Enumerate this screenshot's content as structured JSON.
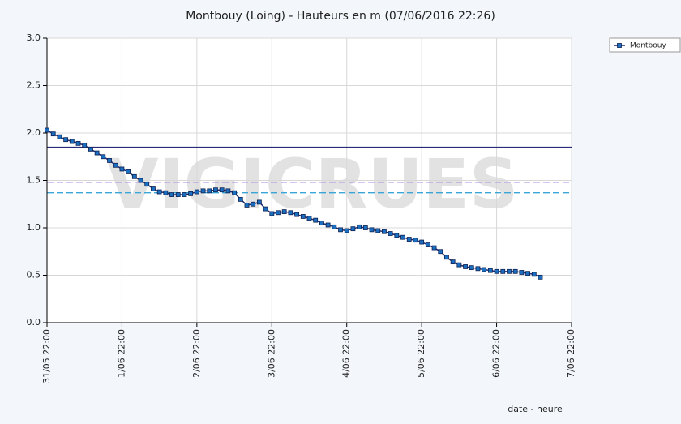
{
  "chart_data": {
    "type": "line",
    "title": "Montbouy (Loing) - Hauteurs en m (07/06/2016 22:26)",
    "watermark": "VIGICRUES",
    "xlabel": "date - heure",
    "legend": "upper right",
    "grid": true,
    "ylim": [
      0,
      3
    ],
    "yticks": [
      {
        "value": 0,
        "label": "0.0"
      },
      {
        "value": 0.5,
        "label": "0.5"
      },
      {
        "value": 1,
        "label": "1.0"
      },
      {
        "value": 1.5,
        "label": "1.5"
      },
      {
        "value": 2,
        "label": "2.0"
      },
      {
        "value": 2.5,
        "label": "2.5"
      },
      {
        "value": 3,
        "label": "3.0"
      }
    ],
    "xlim": [
      "31/05 22:00",
      "7/06 22:00"
    ],
    "xticks": [
      "31/05 22:00",
      "1/06 22:00",
      "2/06 22:00",
      "3/06 22:00",
      "4/06 22:00",
      "5/06 22:00",
      "6/06 22:00",
      "7/06 22:00"
    ],
    "reference_lines": [
      {
        "value": 1.85,
        "color": "#2a2a7a",
        "dashed": false
      },
      {
        "value": 1.48,
        "color": "#a98ee0",
        "dashed": true
      },
      {
        "value": 1.37,
        "color": "#3aa6d8",
        "dashed": true
      }
    ],
    "x": [
      "31/05 22:00",
      "1/06 00:00",
      "1/06 02:00",
      "1/06 04:00",
      "1/06 06:00",
      "1/06 08:00",
      "1/06 10:00",
      "1/06 12:00",
      "1/06 14:00",
      "1/06 16:00",
      "1/06 18:00",
      "1/06 20:00",
      "1/06 22:00",
      "2/06 00:00",
      "2/06 02:00",
      "2/06 04:00",
      "2/06 06:00",
      "2/06 08:00",
      "2/06 10:00",
      "2/06 12:00",
      "2/06 14:00",
      "2/06 16:00",
      "2/06 18:00",
      "2/06 20:00",
      "2/06 22:00",
      "3/06 00:00",
      "3/06 02:00",
      "3/06 04:00",
      "3/06 06:00",
      "3/06 08:00",
      "3/06 10:00",
      "3/06 12:00",
      "3/06 14:00",
      "3/06 16:00",
      "3/06 18:00",
      "3/06 20:00",
      "3/06 22:00",
      "4/06 00:00",
      "4/06 02:00",
      "4/06 04:00",
      "4/06 06:00",
      "4/06 08:00",
      "4/06 10:00",
      "4/06 12:00",
      "4/06 14:00",
      "4/06 16:00",
      "4/06 18:00",
      "4/06 20:00",
      "4/06 22:00",
      "5/06 00:00",
      "5/06 02:00",
      "5/06 04:00",
      "5/06 06:00",
      "5/06 08:00",
      "5/06 10:00",
      "5/06 12:00",
      "5/06 14:00",
      "5/06 16:00",
      "5/06 18:00",
      "5/06 20:00",
      "5/06 22:00",
      "6/06 00:00",
      "6/06 02:00",
      "6/06 04:00",
      "6/06 06:00",
      "6/06 08:00",
      "6/06 10:00",
      "6/06 12:00",
      "6/06 14:00",
      "6/06 16:00",
      "6/06 18:00",
      "6/06 20:00",
      "6/06 22:00",
      "7/06 00:00",
      "7/06 02:00",
      "7/06 04:00",
      "7/06 06:00",
      "7/06 08:00",
      "7/06 10:00",
      "7/06 12:00"
    ],
    "series": [
      {
        "name": "Montbouy",
        "color": "#1a6fc0",
        "line_color": "#1c2a6e",
        "values": [
          2.03,
          1.99,
          1.96,
          1.93,
          1.91,
          1.89,
          1.87,
          1.83,
          1.79,
          1.75,
          1.71,
          1.66,
          1.62,
          1.59,
          1.54,
          1.5,
          1.46,
          1.41,
          1.38,
          1.37,
          1.35,
          1.35,
          1.35,
          1.36,
          1.38,
          1.39,
          1.39,
          1.4,
          1.4,
          1.39,
          1.37,
          1.3,
          1.24,
          1.25,
          1.27,
          1.2,
          1.15,
          1.16,
          1.17,
          1.16,
          1.14,
          1.12,
          1.1,
          1.08,
          1.05,
          1.03,
          1.01,
          0.98,
          0.97,
          0.99,
          1.01,
          1.0,
          0.98,
          0.97,
          0.96,
          0.94,
          0.92,
          0.9,
          0.88,
          0.87,
          0.85,
          0.82,
          0.79,
          0.75,
          0.69,
          0.64,
          0.61,
          0.59,
          0.58,
          0.57,
          0.56,
          0.55,
          0.54,
          0.54,
          0.54,
          0.54,
          0.53,
          0.52,
          0.51,
          0.48
        ]
      }
    ]
  }
}
